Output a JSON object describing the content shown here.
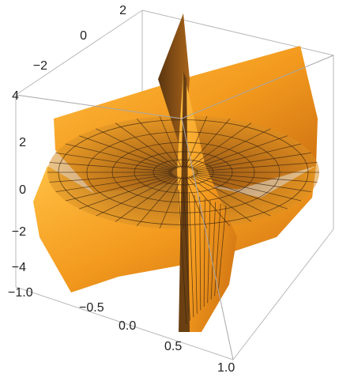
{
  "chart_data": {
    "type": "surface3d",
    "title": "",
    "xlabel": "",
    "ylabel": "",
    "zlabel": "",
    "xlim": [
      -1.0,
      1.0
    ],
    "ylim": [
      -3,
      3
    ],
    "zlim": [
      -4,
      4
    ],
    "x_ticks": [
      "−1.0",
      "−0.5",
      "0.0",
      "0.5",
      "1.0"
    ],
    "y_ticks": [
      "−2",
      "0",
      "2"
    ],
    "z_ticks": [
      "−4",
      "−2",
      "0",
      "2",
      "4"
    ],
    "surface": "x*y*cos(ln(x^2+y^2)) style parametric saddle surface",
    "colors": {
      "surface_light": "#ffb52e",
      "surface_mid": "#f29a1d",
      "surface_dark": "#7a4a14",
      "mesh": "#3a2410",
      "box": "#b8b8b8"
    },
    "grid": false,
    "boxed": true
  }
}
